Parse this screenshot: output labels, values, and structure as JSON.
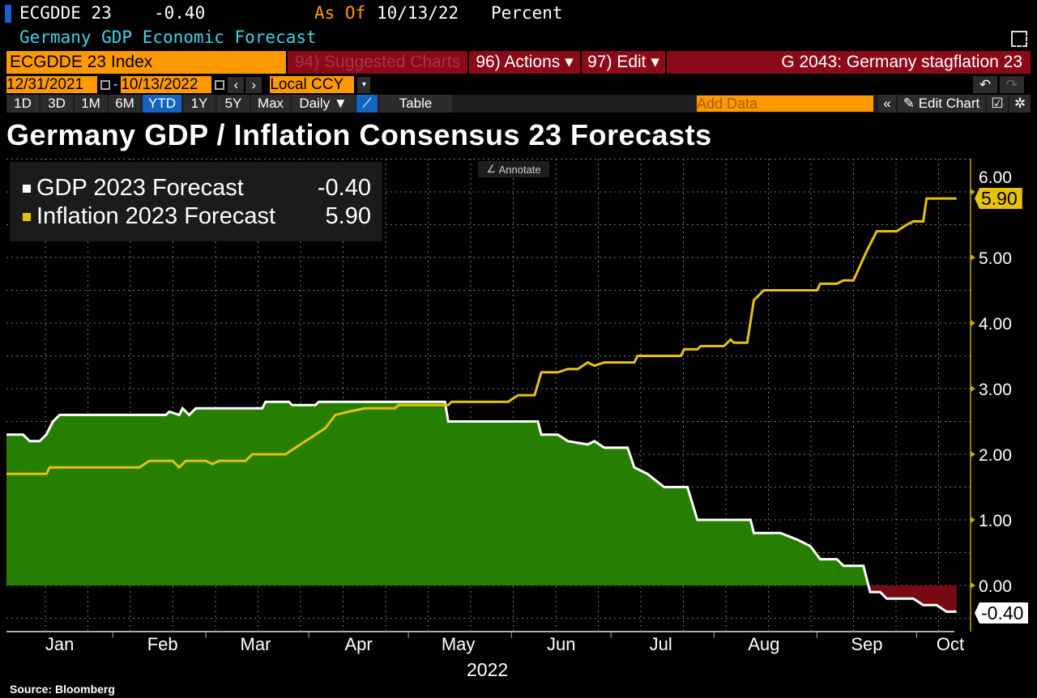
{
  "header": {
    "ticker": "ECGDDE 23",
    "value": "-0.40",
    "as_of_label": "As Of",
    "as_of_date": "10/13/22",
    "unit": "Percent",
    "description": "Germany GDP Economic Forecast"
  },
  "toolbar": {
    "security": "ECGDDE 23 Index",
    "suggested": "94) Suggested Charts",
    "actions": "96) Actions ▾",
    "edit": "97) Edit ▾",
    "chart_name": "G 2043: Germany stagflation 23",
    "start_date": "12/31/2021",
    "end_date": "10/13/2022",
    "currency": "Local CCY",
    "periods": [
      "1D",
      "3D",
      "1M",
      "6M",
      "YTD",
      "1Y",
      "5Y",
      "Max"
    ],
    "selected_period": "YTD",
    "frequency": "Daily ▼",
    "table": "Table",
    "add_data_placeholder": "Add Data",
    "edit_chart": "Edit Chart",
    "annotate": "Annotate"
  },
  "chart_data": {
    "type": "line",
    "title": "Germany GDP / Inflation Consensus 23 Forecasts",
    "xlabel": "2022",
    "x_ticks": [
      "Jan",
      "Feb",
      "Mar",
      "Apr",
      "May",
      "Jun",
      "Jul",
      "Aug",
      "Sep",
      "Oct"
    ],
    "y_ticks": [
      "0.00",
      "1.00",
      "2.00",
      "3.00",
      "4.00",
      "5.00",
      "6.00"
    ],
    "ylim": [
      -0.7,
      6.5
    ],
    "xlim": [
      "2021-12-31",
      "2022-10-13"
    ],
    "grid": true,
    "legend_position": "top-left",
    "y_axis_side": "right",
    "source": "Source: Bloomberg",
    "series": [
      {
        "name": "GDP 2023 Forecast",
        "last": "-0.40",
        "color": "#ffffff",
        "fill_positive": "#267f00",
        "fill_negative": "#7a0a12",
        "points": [
          [
            "2021-12-31",
            2.3
          ],
          [
            "2022-01-05",
            2.3
          ],
          [
            "2022-01-07",
            2.2
          ],
          [
            "2022-01-10",
            2.2
          ],
          [
            "2022-01-12",
            2.3
          ],
          [
            "2022-01-14",
            2.5
          ],
          [
            "2022-01-16",
            2.6
          ],
          [
            "2022-02-17",
            2.6
          ],
          [
            "2022-02-18",
            2.65
          ],
          [
            "2022-02-21",
            2.6
          ],
          [
            "2022-02-22",
            2.7
          ],
          [
            "2022-02-24",
            2.6
          ],
          [
            "2022-02-26",
            2.7
          ],
          [
            "2022-03-18",
            2.7
          ],
          [
            "2022-03-19",
            2.8
          ],
          [
            "2022-03-26",
            2.8
          ],
          [
            "2022-03-27",
            2.75
          ],
          [
            "2022-04-03",
            2.75
          ],
          [
            "2022-04-04",
            2.8
          ],
          [
            "2022-05-12",
            2.8
          ],
          [
            "2022-05-13",
            2.5
          ],
          [
            "2022-06-09",
            2.5
          ],
          [
            "2022-06-10",
            2.3
          ],
          [
            "2022-06-15",
            2.3
          ],
          [
            "2022-06-18",
            2.2
          ],
          [
            "2022-06-24",
            2.15
          ],
          [
            "2022-06-26",
            2.2
          ],
          [
            "2022-06-29",
            2.1
          ],
          [
            "2022-07-06",
            2.1
          ],
          [
            "2022-07-08",
            1.8
          ],
          [
            "2022-07-12",
            1.7
          ],
          [
            "2022-07-17",
            1.5
          ],
          [
            "2022-07-24",
            1.5
          ],
          [
            "2022-07-27",
            1.0
          ],
          [
            "2022-08-12",
            1.0
          ],
          [
            "2022-08-13",
            0.8
          ],
          [
            "2022-08-21",
            0.8
          ],
          [
            "2022-08-26",
            0.7
          ],
          [
            "2022-08-30",
            0.6
          ],
          [
            "2022-09-02",
            0.4
          ],
          [
            "2022-09-07",
            0.4
          ],
          [
            "2022-09-09",
            0.3
          ],
          [
            "2022-09-15",
            0.3
          ],
          [
            "2022-09-17",
            -0.1
          ],
          [
            "2022-09-20",
            -0.1
          ],
          [
            "2022-09-22",
            -0.2
          ],
          [
            "2022-09-30",
            -0.2
          ],
          [
            "2022-10-03",
            -0.3
          ],
          [
            "2022-10-07",
            -0.3
          ],
          [
            "2022-10-10",
            -0.4
          ],
          [
            "2022-10-13",
            -0.4
          ]
        ]
      },
      {
        "name": "Inflation 2023 Forecast",
        "last": "5.90",
        "color": "#e6c20a",
        "points": [
          [
            "2021-12-31",
            1.7
          ],
          [
            "2022-01-12",
            1.7
          ],
          [
            "2022-01-13",
            1.8
          ],
          [
            "2022-02-09",
            1.8
          ],
          [
            "2022-02-12",
            1.9
          ],
          [
            "2022-02-19",
            1.9
          ],
          [
            "2022-02-21",
            1.8
          ],
          [
            "2022-02-23",
            1.9
          ],
          [
            "2022-03-01",
            1.9
          ],
          [
            "2022-03-03",
            1.85
          ],
          [
            "2022-03-05",
            1.9
          ],
          [
            "2022-03-13",
            1.9
          ],
          [
            "2022-03-15",
            2.0
          ],
          [
            "2022-03-25",
            2.0
          ],
          [
            "2022-03-28",
            2.1
          ],
          [
            "2022-03-31",
            2.2
          ],
          [
            "2022-04-03",
            2.3
          ],
          [
            "2022-04-06",
            2.4
          ],
          [
            "2022-04-09",
            2.6
          ],
          [
            "2022-04-13",
            2.65
          ],
          [
            "2022-04-18",
            2.7
          ],
          [
            "2022-04-27",
            2.7
          ],
          [
            "2022-04-28",
            2.75
          ],
          [
            "2022-05-13",
            2.75
          ],
          [
            "2022-05-14",
            2.8
          ],
          [
            "2022-05-31",
            2.8
          ],
          [
            "2022-06-03",
            2.9
          ],
          [
            "2022-06-08",
            2.9
          ],
          [
            "2022-06-10",
            3.25
          ],
          [
            "2022-06-15",
            3.25
          ],
          [
            "2022-06-18",
            3.3
          ],
          [
            "2022-06-21",
            3.3
          ],
          [
            "2022-06-24",
            3.4
          ],
          [
            "2022-06-26",
            3.35
          ],
          [
            "2022-06-29",
            3.4
          ],
          [
            "2022-07-08",
            3.4
          ],
          [
            "2022-07-09",
            3.5
          ],
          [
            "2022-07-22",
            3.5
          ],
          [
            "2022-07-23",
            3.6
          ],
          [
            "2022-07-27",
            3.6
          ],
          [
            "2022-07-28",
            3.65
          ],
          [
            "2022-08-04",
            3.65
          ],
          [
            "2022-08-06",
            3.75
          ],
          [
            "2022-08-07",
            3.7
          ],
          [
            "2022-08-11",
            3.7
          ],
          [
            "2022-08-13",
            4.35
          ],
          [
            "2022-08-16",
            4.5
          ],
          [
            "2022-09-01",
            4.5
          ],
          [
            "2022-09-02",
            4.6
          ],
          [
            "2022-09-07",
            4.6
          ],
          [
            "2022-09-09",
            4.65
          ],
          [
            "2022-09-12",
            4.65
          ],
          [
            "2022-09-16",
            5.1
          ],
          [
            "2022-09-18",
            5.3
          ],
          [
            "2022-09-19",
            5.4
          ],
          [
            "2022-09-25",
            5.4
          ],
          [
            "2022-09-28",
            5.5
          ],
          [
            "2022-09-30",
            5.55
          ],
          [
            "2022-10-03",
            5.55
          ],
          [
            "2022-10-04",
            5.9
          ],
          [
            "2022-10-13",
            5.9
          ]
        ]
      }
    ]
  }
}
